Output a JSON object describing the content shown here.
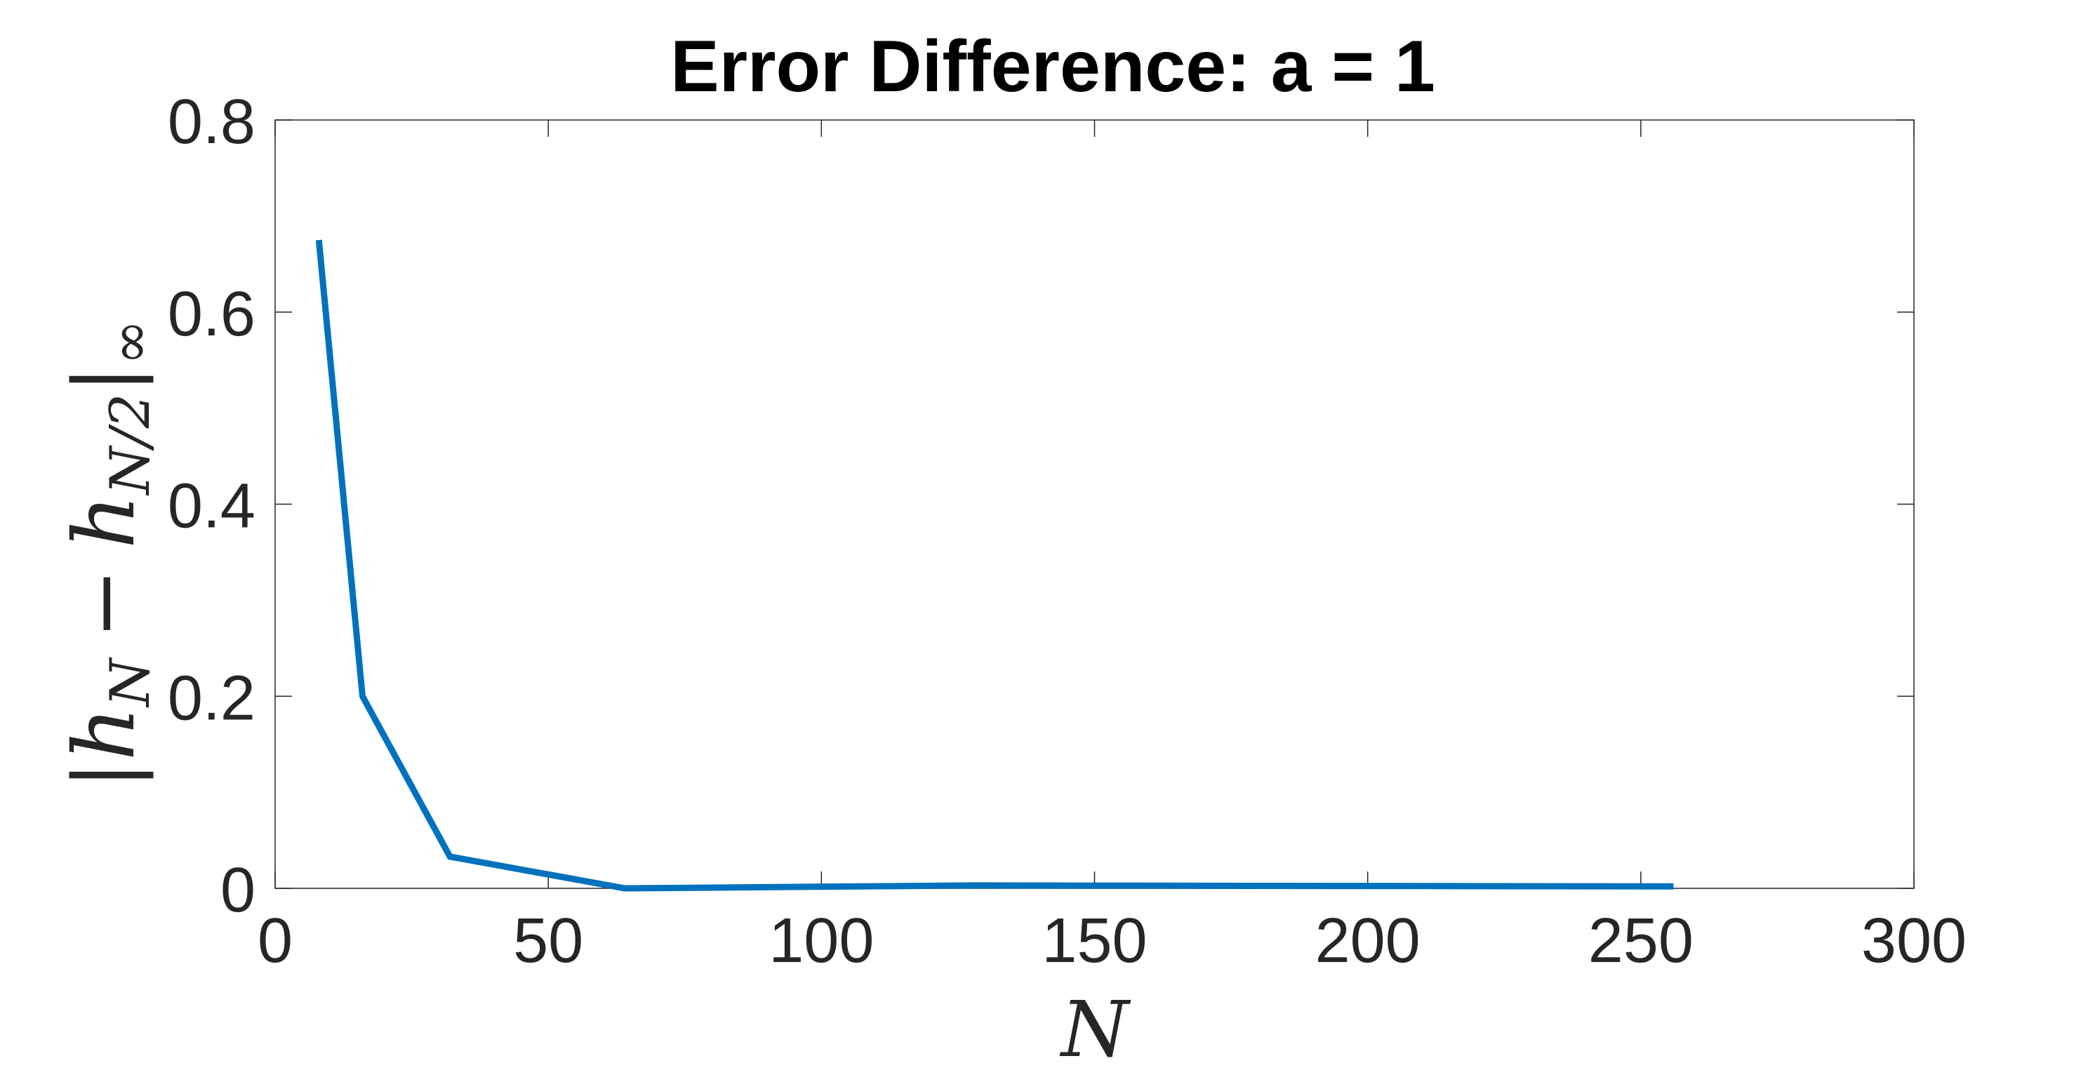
{
  "chart_data": {
    "type": "line",
    "title": "Error Difference: a = 1",
    "xlabel": "N",
    "ylabel": {
      "open": "|",
      "h1": "h",
      "sub1": "N",
      "minus": "−",
      "h2": "h",
      "sub2": "N/2",
      "close": "|",
      "norm": "∞"
    },
    "xlim": [
      0,
      300
    ],
    "ylim": [
      0,
      0.8
    ],
    "xticks": [
      0,
      50,
      100,
      150,
      200,
      250,
      300
    ],
    "xtick_labels": [
      "0",
      "50",
      "100",
      "150",
      "200",
      "250",
      "300"
    ],
    "yticks": [
      0,
      0.2,
      0.4,
      0.6,
      0.8
    ],
    "ytick_labels": [
      "0",
      "0.2",
      "0.4",
      "0.6",
      "0.8"
    ],
    "grid": false,
    "box": true,
    "series": [
      {
        "color": "#0072BD",
        "x": [
          8,
          16,
          32,
          64,
          128,
          256
        ],
        "y": [
          0.675,
          0.2,
          0.033,
          0.0,
          0.003,
          0.002
        ]
      }
    ]
  }
}
